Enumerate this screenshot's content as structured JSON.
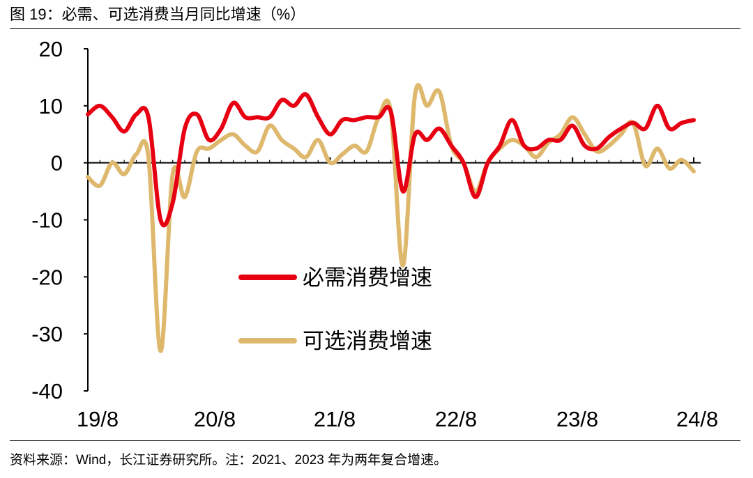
{
  "header": {
    "title": "图 19：必需、可选消费当月同比增速（%）"
  },
  "footer": {
    "source": "资料来源：Wind，长江证券研究所。注：2021、2023 年为两年复合增速。"
  },
  "chart_data": {
    "type": "line",
    "title": "",
    "xlabel": "",
    "ylabel": "",
    "ylim": [
      -40,
      20
    ],
    "yticks": [
      20,
      10,
      0,
      -10,
      -20,
      -30,
      -40
    ],
    "x_tick_labels": [
      "19/8",
      "20/8",
      "21/8",
      "22/8",
      "23/8",
      "24/8"
    ],
    "x_start": "2019-08",
    "x_end": "2024-08",
    "legend_position": "center-left",
    "grid": false,
    "series": [
      {
        "name": "必需消费增速",
        "color": "#e60012",
        "values": [
          8.5,
          10,
          8,
          5.5,
          8.5,
          8,
          -10,
          -7,
          6,
          8.5,
          4,
          6,
          10.5,
          8,
          8,
          8,
          11,
          10,
          12,
          8,
          5,
          7.5,
          7.5,
          8,
          8,
          9,
          -5,
          5,
          4,
          6,
          3,
          0,
          -6,
          0,
          3,
          7.5,
          3,
          2.5,
          4,
          4,
          6.5,
          3,
          2.5,
          4.5,
          6,
          7,
          6,
          10,
          6,
          7,
          7.5
        ]
      },
      {
        "name": "可选消费增速",
        "color": "#deb86c",
        "values": [
          -2.5,
          -4,
          0,
          -2,
          1.5,
          1,
          -33,
          -2,
          -6,
          2,
          2.5,
          4,
          5,
          3,
          2,
          6.5,
          4,
          2.5,
          1,
          4,
          0,
          1.5,
          3,
          2,
          8,
          9,
          -18,
          12,
          10,
          12.5,
          3,
          0,
          -5,
          0,
          2.5,
          4,
          3,
          1,
          3.5,
          5,
          8,
          5,
          2,
          3,
          5,
          7,
          -0.5,
          2.5,
          -1,
          0.5,
          -1.5
        ]
      }
    ]
  }
}
